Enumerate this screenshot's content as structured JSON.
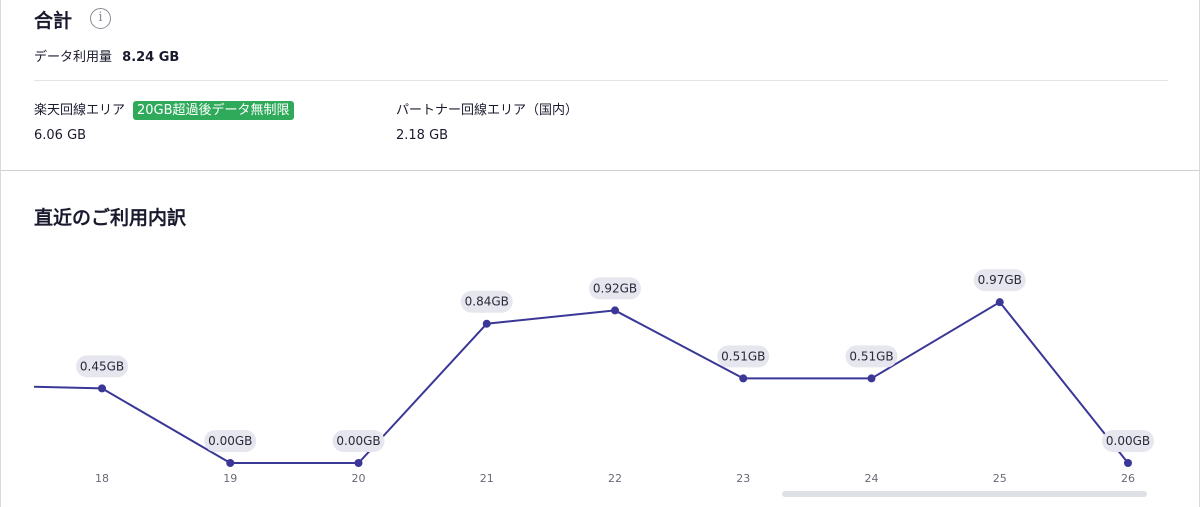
{
  "summary": {
    "title": "合計",
    "total_label": "データ利用量",
    "total_value": "8.24 GB",
    "rakuten_area": {
      "label": "楽天回線エリア",
      "badge": "20GB超過後データ無制限",
      "value": "6.06 GB"
    },
    "partner_area": {
      "label": "パートナー回線エリア（国内）",
      "value": "2.18 GB"
    }
  },
  "recent": {
    "title": "直近のご利用内訳"
  },
  "colors": {
    "line": "#3a3796",
    "badge_green": "#2faa5a",
    "label_pill": "#e6e6ef"
  },
  "chart_data": {
    "type": "line",
    "title": "",
    "xlabel": "",
    "ylabel": "",
    "x": [
      "18",
      "19",
      "20",
      "21",
      "22",
      "23",
      "24",
      "25",
      "26"
    ],
    "values": [
      0.45,
      0.0,
      0.0,
      0.84,
      0.92,
      0.51,
      0.51,
      0.97,
      0.0
    ],
    "data_labels": [
      "0.45GB",
      "0.00GB",
      "0.00GB",
      "0.84GB",
      "0.92GB",
      "0.51GB",
      "0.51GB",
      "0.97GB",
      "0.00GB"
    ],
    "previous_value": 0.46,
    "ylim": [
      0,
      1.2
    ],
    "grid": false,
    "legend": "none"
  }
}
